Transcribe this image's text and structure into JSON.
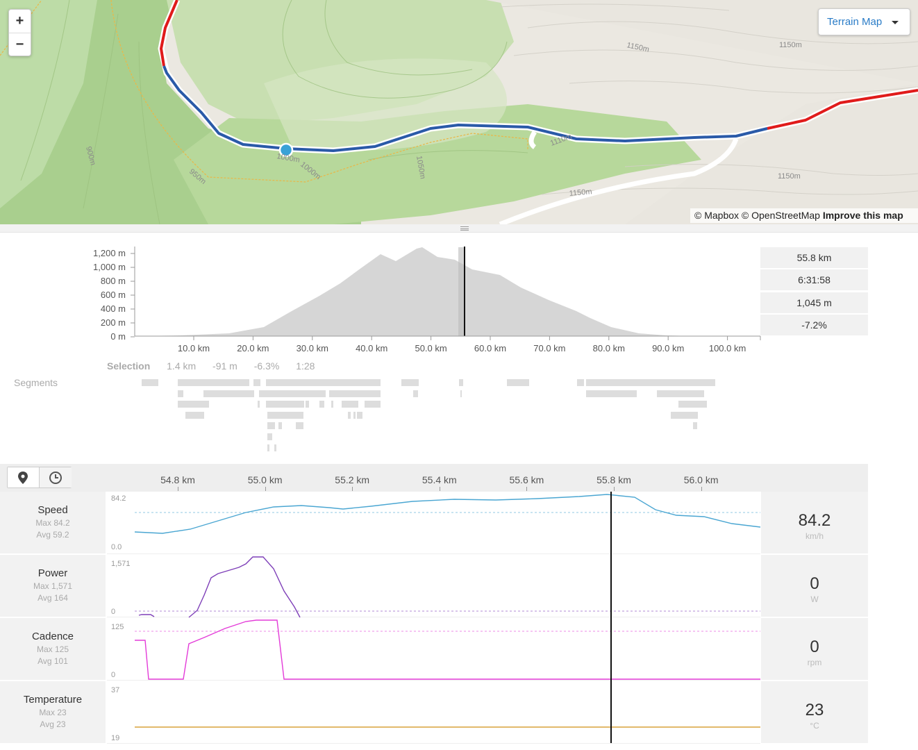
{
  "map": {
    "zoom_in": "+",
    "zoom_out": "−",
    "map_type": "Terrain Map",
    "attribution_mapbox": "© Mapbox",
    "attribution_osm": "© OpenStreetMap",
    "attribution_improve": "Improve this map",
    "contours": [
      "1150m",
      "1150m",
      "1150m",
      "1150m",
      "1110m",
      "1050m",
      "1000m",
      "1000m",
      "900m",
      "950m"
    ]
  },
  "elevation": {
    "y_ticks": [
      "1,200 m",
      "1,000 m",
      "800 m",
      "600 m",
      "400 m",
      "200 m",
      "0 m"
    ],
    "x_ticks": [
      "10.0 km",
      "20.0 km",
      "30.0 km",
      "40.0 km",
      "50.0 km",
      "60.0 km",
      "70.0 km",
      "80.0 km",
      "90.0 km",
      "100.0 km"
    ],
    "cursor_stats": {
      "distance": "55.8 km",
      "time": "6:31:58",
      "elevation": "1,045 m",
      "grade": "-7.2%"
    }
  },
  "selection": {
    "title": "Selection",
    "distance": "1.4 km",
    "elevation": "-91 m",
    "grade": "-6.3%",
    "time": "1:28"
  },
  "segments_label": "Segments",
  "tracks_axis": {
    "x_ticks": [
      "54.8 km",
      "55.0 km",
      "55.2 km",
      "55.4 km",
      "55.6 km",
      "55.8 km",
      "56.0 km"
    ]
  },
  "mode_icons": [
    "location-pin-icon",
    "clock-icon"
  ],
  "tracks": [
    {
      "key": "speed",
      "name": "Speed",
      "max": "Max 84.2",
      "avg": "Avg 59.2",
      "top": "84.2",
      "bottom": "0.0",
      "value": "84.2",
      "unit": "km/h",
      "color": "#4aa6d2"
    },
    {
      "key": "power",
      "name": "Power",
      "max": "Max 1,571",
      "avg": "Avg 164",
      "top": "1,571",
      "bottom": "0",
      "value": "0",
      "unit": "W",
      "color": "#7e3fb8"
    },
    {
      "key": "cadence",
      "name": "Cadence",
      "max": "Max 125",
      "avg": "Avg 101",
      "top": "125",
      "bottom": "0",
      "value": "0",
      "unit": "rpm",
      "color": "#e33bd8"
    },
    {
      "key": "temperature",
      "name": "Temperature",
      "max": "Max 23",
      "avg": "Avg 23",
      "top": "37",
      "bottom": "19",
      "value": "23",
      "unit": "°C",
      "color": "#d9a23a"
    }
  ]
}
